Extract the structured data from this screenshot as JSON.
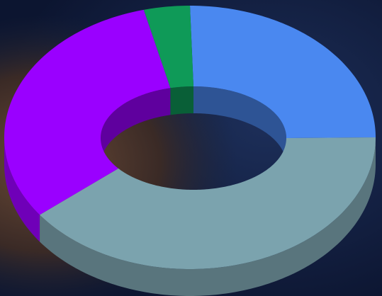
{
  "chart_data": {
    "type": "donut",
    "values": [
      25,
      40,
      31,
      4
    ],
    "colors": [
      "#4a88f0",
      "#7ba3ae",
      "#9a00ff",
      "#0f9a58"
    ]
  }
}
